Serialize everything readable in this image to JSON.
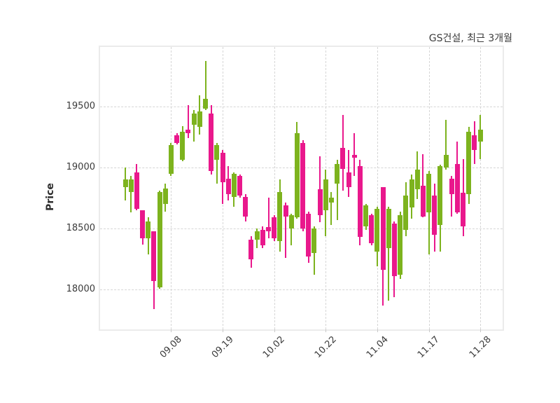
{
  "chart_data": {
    "type": "candlestick",
    "title": "GS건설, 최근 3개월",
    "ylabel": "Price",
    "xlabel": "",
    "grid": "dashed",
    "legend": "none",
    "ylim": [
      17675,
      19985
    ],
    "yticks": [
      18000,
      18500,
      19000,
      19500
    ],
    "xticks": [
      {
        "label": "09.08",
        "index": 8
      },
      {
        "label": "09.19",
        "index": 17
      },
      {
        "label": "10.02",
        "index": 26
      },
      {
        "label": "10.22",
        "index": 35
      },
      {
        "label": "11.04",
        "index": 44
      },
      {
        "label": "11.17",
        "index": 53
      },
      {
        "label": "11.28",
        "index": 62
      }
    ],
    "num_candles": 63,
    "candle_format": [
      "open",
      "high",
      "low",
      "close"
    ],
    "colors": {
      "up": "#7db31e",
      "down": "#e9188c",
      "grid": "#d6d6d6",
      "border": "#ebebeb",
      "text": "#3a3a3a"
    },
    "candles": [
      [
        18840,
        19000,
        18730,
        18900
      ],
      [
        18800,
        18930,
        18630,
        18900
      ],
      [
        18960,
        19030,
        18650,
        18660
      ],
      [
        18650,
        18650,
        18370,
        18420
      ],
      [
        18420,
        18590,
        18290,
        18560
      ],
      [
        18480,
        18480,
        17840,
        18070
      ],
      [
        18020,
        18810,
        18010,
        18800
      ],
      [
        18700,
        18870,
        18640,
        18830
      ],
      [
        18950,
        19200,
        18930,
        19180
      ],
      [
        19260,
        19280,
        19190,
        19200
      ],
      [
        19060,
        19340,
        19050,
        19290
      ],
      [
        19310,
        19510,
        19240,
        19280
      ],
      [
        19350,
        19470,
        19210,
        19440
      ],
      [
        19330,
        19590,
        19270,
        19460
      ],
      [
        19480,
        19870,
        19470,
        19560
      ],
      [
        19440,
        19510,
        18940,
        18970
      ],
      [
        19060,
        19200,
        18870,
        19180
      ],
      [
        19120,
        19140,
        18700,
        18880
      ],
      [
        18910,
        19010,
        18730,
        18780
      ],
      [
        18760,
        18960,
        18680,
        18950
      ],
      [
        18930,
        18940,
        18750,
        18770
      ],
      [
        18760,
        18780,
        18560,
        18600
      ],
      [
        18410,
        18440,
        18180,
        18250
      ],
      [
        18410,
        18500,
        18340,
        18480
      ],
      [
        18490,
        18520,
        18340,
        18360
      ],
      [
        18510,
        18750,
        18420,
        18480
      ],
      [
        18590,
        18610,
        18400,
        18420
      ],
      [
        18400,
        18900,
        18310,
        18800
      ],
      [
        18690,
        18710,
        18260,
        18600
      ],
      [
        18500,
        18620,
        18360,
        18610
      ],
      [
        18590,
        19370,
        18580,
        19280
      ],
      [
        19200,
        19220,
        18480,
        18500
      ],
      [
        18620,
        18640,
        18220,
        18270
      ],
      [
        18300,
        18520,
        18120,
        18500
      ],
      [
        18820,
        19090,
        18550,
        18610
      ],
      [
        18650,
        18980,
        18440,
        18900
      ],
      [
        18710,
        18800,
        18530,
        18750
      ],
      [
        18870,
        19060,
        18570,
        19030
      ],
      [
        19160,
        19430,
        18810,
        18990
      ],
      [
        18960,
        19140,
        18760,
        18840
      ],
      [
        19100,
        19280,
        18930,
        19080
      ],
      [
        19010,
        19060,
        18360,
        18430
      ],
      [
        18520,
        18700,
        18490,
        18690
      ],
      [
        18610,
        18620,
        18360,
        18380
      ],
      [
        18310,
        18680,
        18190,
        18660
      ],
      [
        18840,
        18840,
        17870,
        18160
      ],
      [
        18340,
        18680,
        17910,
        18660
      ],
      [
        18540,
        18560,
        17940,
        18110
      ],
      [
        18120,
        18640,
        18090,
        18610
      ],
      [
        18490,
        18880,
        18440,
        18770
      ],
      [
        18670,
        18940,
        18580,
        18900
      ],
      [
        18820,
        19130,
        18740,
        18980
      ],
      [
        18850,
        19110,
        18590,
        18600
      ],
      [
        18630,
        18970,
        18290,
        18950
      ],
      [
        18770,
        18870,
        18310,
        18450
      ],
      [
        18530,
        19020,
        18310,
        19010
      ],
      [
        19000,
        19390,
        18980,
        19100
      ],
      [
        18910,
        18930,
        18600,
        18780
      ],
      [
        19030,
        19210,
        18620,
        18630
      ],
      [
        18790,
        19070,
        18440,
        18520
      ],
      [
        18780,
        19330,
        18700,
        19290
      ],
      [
        19260,
        19380,
        19030,
        19140
      ],
      [
        19210,
        19430,
        19070,
        19310
      ]
    ]
  }
}
